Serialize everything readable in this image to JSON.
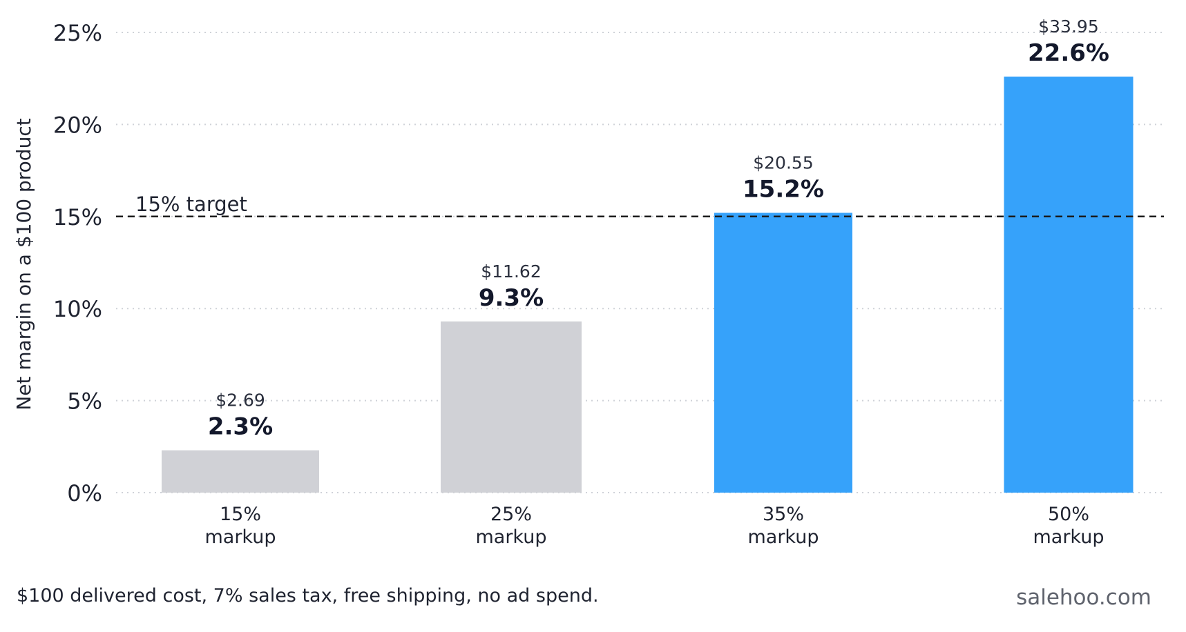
{
  "chart_data": {
    "type": "bar",
    "categories": [
      "15%\nmarkup",
      "25%\nmarkup",
      "35%\nmarkup",
      "50%\nmarkup"
    ],
    "values": [
      2.3,
      9.3,
      15.2,
      22.6
    ],
    "value_labels": [
      "2.3%",
      "9.3%",
      "15.2%",
      "22.6%"
    ],
    "amount_labels": [
      "$2.69",
      "$11.62",
      "$20.55",
      "$33.95"
    ],
    "bar_colors": [
      "#d0d1d6",
      "#d0d1d6",
      "#36a2fa",
      "#36a2fa"
    ],
    "ylabel": "Net margin on a $100 product",
    "xlabel": "",
    "title": "",
    "ylim": [
      0,
      25
    ],
    "yticks": [
      0,
      5,
      10,
      15,
      20,
      25
    ],
    "ytick_labels": [
      "0%",
      "5%",
      "10%",
      "15%",
      "20%",
      "25%"
    ],
    "grid": true,
    "reference_line": {
      "value": 15,
      "label": "15% target",
      "style": "dashed",
      "color": "#1a1a1a"
    }
  },
  "footnote": "$100 delivered cost, 7% sales tax, free shipping, no ad spend.",
  "brand": "salehoo.com"
}
